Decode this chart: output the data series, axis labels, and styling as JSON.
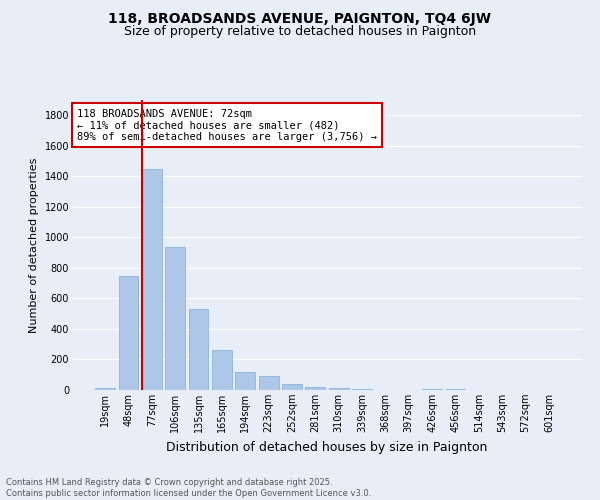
{
  "title": "118, BROADSANDS AVENUE, PAIGNTON, TQ4 6JW",
  "subtitle": "Size of property relative to detached houses in Paignton",
  "xlabel": "Distribution of detached houses by size in Paignton",
  "ylabel": "Number of detached properties",
  "footer_line1": "Contains HM Land Registry data © Crown copyright and database right 2025.",
  "footer_line2": "Contains public sector information licensed under the Open Government Licence v3.0.",
  "categories": [
    "19sqm",
    "48sqm",
    "77sqm",
    "106sqm",
    "135sqm",
    "165sqm",
    "194sqm",
    "223sqm",
    "252sqm",
    "281sqm",
    "310sqm",
    "339sqm",
    "368sqm",
    "397sqm",
    "426sqm",
    "456sqm",
    "514sqm",
    "543sqm",
    "572sqm",
    "601sqm"
  ],
  "values": [
    15,
    750,
    1450,
    940,
    530,
    265,
    115,
    90,
    40,
    20,
    10,
    5,
    3,
    2,
    8,
    8,
    2,
    2,
    1,
    1
  ],
  "bar_color": "#aec6e8",
  "bar_edge_color": "#7aafd4",
  "vline_color": "#cc0000",
  "annotation_text": "118 BROADSANDS AVENUE: 72sqm\n← 11% of detached houses are smaller (482)\n89% of semi-detached houses are larger (3,756) →",
  "annotation_box_color": "white",
  "annotation_box_edge": "#cc0000",
  "ylim": [
    0,
    1900
  ],
  "background_color": "#e8eef8",
  "grid_color": "white",
  "title_fontsize": 10,
  "subtitle_fontsize": 9,
  "tick_fontsize": 7,
  "ylabel_fontsize": 8,
  "xlabel_fontsize": 9,
  "footer_fontsize": 6,
  "annot_fontsize": 7.5
}
